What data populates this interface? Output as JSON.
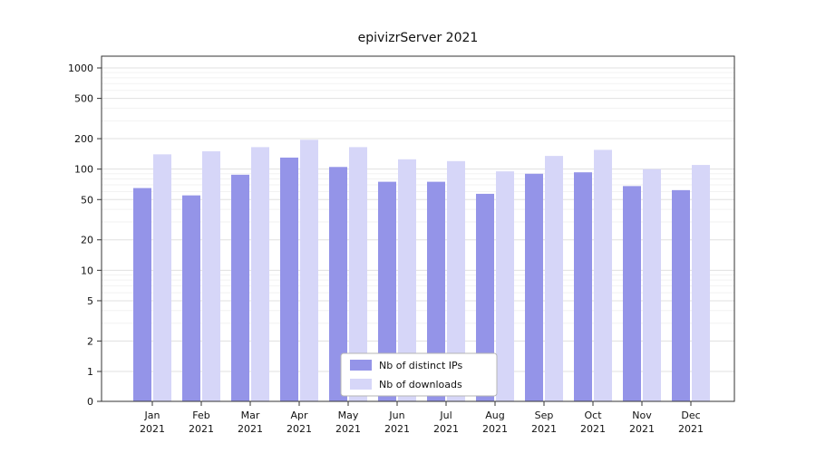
{
  "chart_data": {
    "type": "bar",
    "title": "epivizrServer 2021",
    "categories": [
      "Jan",
      "Feb",
      "Mar",
      "Apr",
      "May",
      "Jun",
      "Jul",
      "Aug",
      "Sep",
      "Oct",
      "Nov",
      "Dec"
    ],
    "year_label": "2021",
    "series": [
      {
        "name": "Nb of distinct IPs",
        "color": "#9494e8",
        "values": [
          65,
          55,
          88,
          130,
          105,
          75,
          75,
          57,
          90,
          93,
          68,
          62
        ]
      },
      {
        "name": "Nb of downloads",
        "color": "#d6d6f8",
        "values": [
          140,
          150,
          165,
          195,
          165,
          125,
          120,
          95,
          135,
          155,
          100,
          110
        ]
      }
    ],
    "yscale": "symlog",
    "yticks": [
      0,
      1,
      2,
      5,
      10,
      20,
      50,
      100,
      200,
      500,
      1000
    ],
    "ylim": [
      0,
      1400
    ],
    "xlabel": "",
    "ylabel": "",
    "grid": true,
    "legend_position": "bottom-center"
  }
}
